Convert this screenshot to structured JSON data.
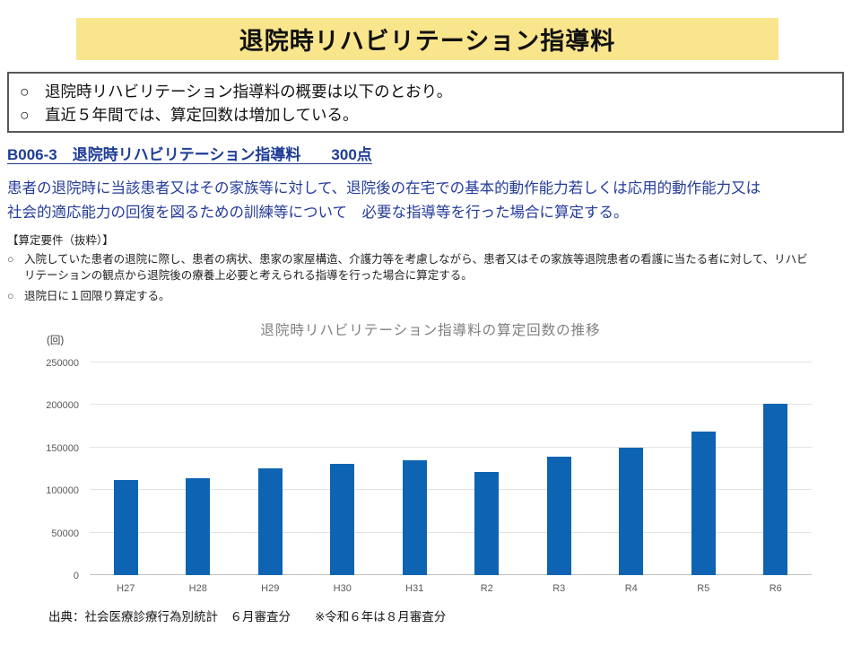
{
  "title": "退院時リハビリテーション指導料",
  "summary": {
    "items": [
      {
        "marker": "○",
        "text": "退院時リハビリテーション指導料の概要は以下のとおり。"
      },
      {
        "marker": "○",
        "text": "直近５年間では、算定回数は増加している。"
      }
    ]
  },
  "section": {
    "heading": "B006-3　退院時リハビリテーション指導料　　300点",
    "description_lines": [
      "患者の退院時に当該患者又はその家族等に対して、退院後の在宅での基本的動作能力若しくは応用的動作能力又は",
      "社会的適応能力の回復を図るための訓練等について　必要な指導等を行った場合に算定する。"
    ]
  },
  "requirements": {
    "title": "【算定要件（抜粋）】",
    "items": [
      {
        "marker": "○",
        "lines": [
          "入院していた患者の退院に際し、患者の病状、患家の家屋構造、介護力等を考慮しながら、患者又はその家族等退院患者の看護に当たる者に対して、リハビ",
          "リテーションの観点から退院後の療養上必要と考えられる指導を行った場合に算定する。"
        ]
      },
      {
        "marker": "○",
        "lines": [
          "退院日に１回限り算定する。"
        ]
      }
    ]
  },
  "chart_data": {
    "type": "bar",
    "title": "退院時リハビリテーション指導料の算定回数の推移",
    "unit_label": "(回)",
    "categories": [
      "H27",
      "H28",
      "H29",
      "H30",
      "H31",
      "R2",
      "R3",
      "R4",
      "R5",
      "R6"
    ],
    "values": [
      112000,
      113500,
      125500,
      131000,
      135000,
      121000,
      139000,
      150000,
      169000,
      201000
    ],
    "xlabel": "",
    "ylabel": "(回)",
    "ylim": [
      0,
      250000
    ],
    "yticks": [
      0,
      50000,
      100000,
      150000,
      200000,
      250000
    ],
    "grid": true,
    "legend": "none",
    "bar_color": "#0E64B2"
  },
  "source": "出典：社会医療診療行為別統計　６月審査分　　※令和６年は８月審査分",
  "colors": {
    "banner_bg": "#F9E58C",
    "heading_blue": "#1E3C96",
    "body_blue": "#253C9A",
    "bar_blue": "#0E64B2",
    "box_border": "#58585A",
    "gridline": "#E3E3E3",
    "tick_text": "#595959",
    "chart_title_gray": "#7F7F7F"
  }
}
